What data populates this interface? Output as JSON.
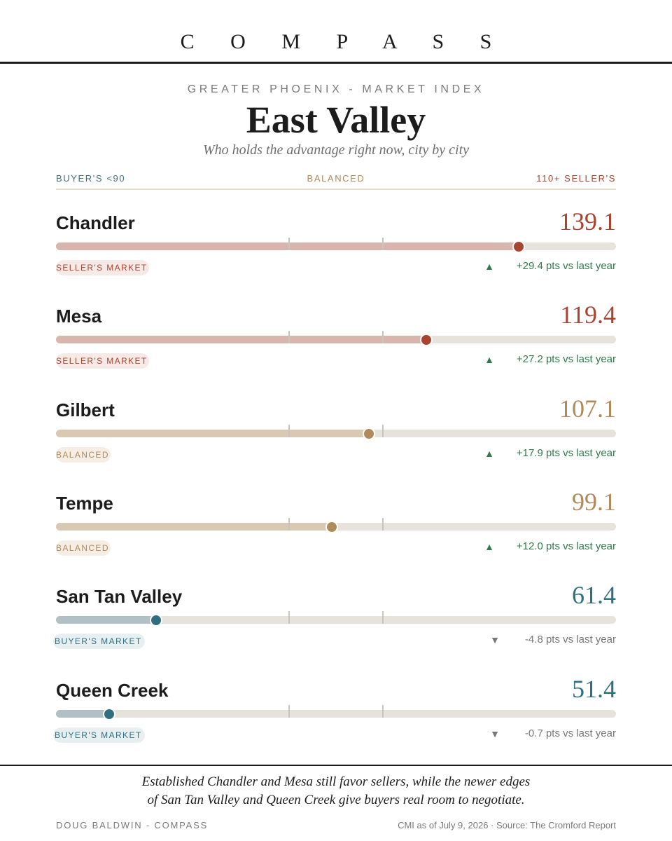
{
  "header": {
    "brand": "C O M P A S S",
    "eyebrow": "GREATER PHOENIX - MARKET INDEX",
    "title": "East Valley",
    "subtitle": "Who holds the advantage right now, city by city"
  },
  "scale": {
    "left_label": "BUYER'S <90",
    "middle_label": "BALANCED",
    "right_label": "110+ SELLER'S"
  },
  "colors": {
    "seller": "#a8442f",
    "seller_fill": "#d8b6ad",
    "seller_badge_bg": "#f7e9e5",
    "balanced": "#b08a5a",
    "balanced_fill": "#d9c9b2",
    "balanced_badge_bg": "#f6eee4",
    "buyer": "#2f6f80",
    "buyer_fill": "#b0c0c4",
    "buyer_badge_bg": "#e7eff1",
    "up": "#2f7a4a",
    "down": "#777777"
  },
  "chart_data": {
    "type": "bar",
    "axis_range": [
      40,
      160
    ],
    "thresholds": [
      90,
      110
    ],
    "categories": [
      "Chandler",
      "Mesa",
      "Gilbert",
      "Tempe",
      "San Tan Valley",
      "Queen Creek"
    ],
    "values": [
      139.1,
      119.4,
      107.1,
      99.1,
      61.4,
      51.4
    ],
    "rows": [
      {
        "city": "Chandler",
        "score": 139.1,
        "score_label": "139.1",
        "status": "SELLER'S MARKET",
        "tone": "seller",
        "trend": "up",
        "change": "+29.4 pts vs last year"
      },
      {
        "city": "Mesa",
        "score": 119.4,
        "score_label": "119.4",
        "status": "SELLER'S MARKET",
        "tone": "seller",
        "trend": "up",
        "change": "+27.2 pts vs last year"
      },
      {
        "city": "Gilbert",
        "score": 107.1,
        "score_label": "107.1",
        "status": "BALANCED",
        "tone": "balanced",
        "trend": "up",
        "change": "+17.9 pts vs last year"
      },
      {
        "city": "Tempe",
        "score": 99.1,
        "score_label": "99.1",
        "status": "BALANCED",
        "tone": "balanced",
        "trend": "up",
        "change": "+12.0 pts vs last year"
      },
      {
        "city": "San Tan Valley",
        "score": 61.4,
        "score_label": "61.4",
        "status": "BUYER'S MARKET",
        "tone": "buyer",
        "trend": "down",
        "change": "-4.8 pts vs last year"
      },
      {
        "city": "Queen Creek",
        "score": 51.4,
        "score_label": "51.4",
        "status": "BUYER'S MARKET",
        "tone": "buyer",
        "trend": "down",
        "change": "-0.7 pts vs last year"
      }
    ]
  },
  "footer": {
    "note_line1": "Established Chandler and Mesa still favor sellers, while the newer edges",
    "note_line2": "of San Tan Valley and Queen Creek give buyers real room to negotiate.",
    "credit": "DOUG BALDWIN - COMPASS",
    "source": "CMI as of July 9, 2026 · Source: The Cromford Report"
  }
}
